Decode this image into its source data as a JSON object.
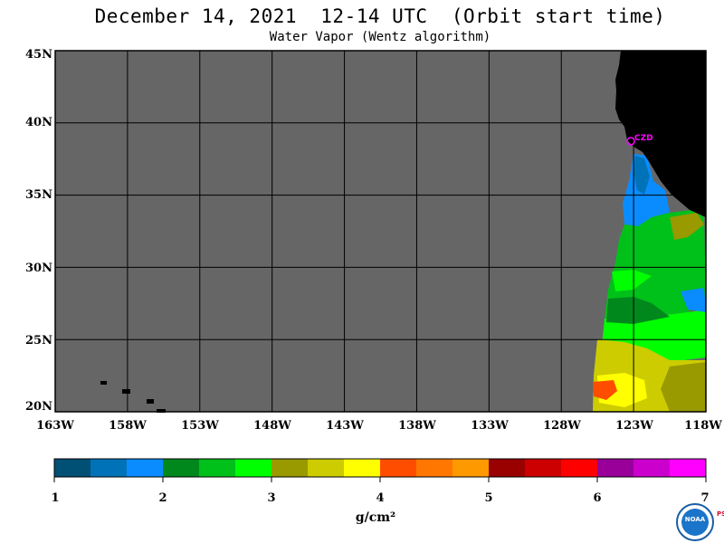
{
  "title": "December 14, 2021  12-14 UTC  (Orbit start time)",
  "subtitle": "Water Vapor (Wentz algorithm)",
  "map": {
    "lon_range": [
      -163,
      -118
    ],
    "lat_range": [
      20,
      45
    ],
    "lat_labels": [
      "45N",
      "40N",
      "35N",
      "30N",
      "25N",
      "20N"
    ],
    "lon_labels": [
      "163W",
      "158W",
      "153W",
      "148W",
      "143W",
      "138W",
      "133W",
      "128W",
      "123W",
      "118W"
    ],
    "station_label": "CZD",
    "colors": {
      "no_data": "#666666",
      "land": "#000000",
      "grid": "#000000",
      "station": "#ff00ff"
    }
  },
  "colorbar": {
    "unit": "g/cm²",
    "tick_labels": [
      "1",
      "2",
      "3",
      "4",
      "5",
      "6",
      "7"
    ],
    "colors": [
      "#004f75",
      "#0073b8",
      "#0a8cff",
      "#00881d",
      "#00c01a",
      "#00ff00",
      "#999900",
      "#cccc00",
      "#ffff00",
      "#ff4d00",
      "#ff7700",
      "#ff9900",
      "#990000",
      "#cc0000",
      "#ff0000",
      "#990099",
      "#cc00cc",
      "#ff00ff"
    ]
  },
  "logo": {
    "text": "NOAA",
    "side_text": "PSL"
  }
}
